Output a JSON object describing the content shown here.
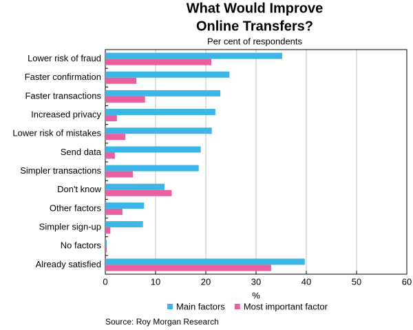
{
  "chart_data": {
    "type": "hbar",
    "title": [
      "What Would Improve",
      "Online Transfers?"
    ],
    "subtitle": "Per cent of respondents",
    "xlabel": "%",
    "source": "Source: Roy Morgan Research",
    "categories": [
      "Lower risk of fraud",
      "Faster confirmation",
      "Faster transactions",
      "Increased privacy",
      "Lower risk of mistakes",
      "Send data",
      "Simpler transactions",
      "Don't know",
      "Other factors",
      "Simpler sign-up",
      "No factors",
      "Already satisfied"
    ],
    "series": [
      {
        "name": "Main factors",
        "color": "#3bb6e6",
        "values": [
          35.2,
          24.7,
          22.9,
          21.9,
          21.2,
          19.0,
          18.6,
          11.8,
          7.7,
          7.5,
          0.3,
          39.7
        ]
      },
      {
        "name": "Most important factor",
        "color": "#e8609f",
        "values": [
          21.1,
          6.2,
          7.9,
          2.3,
          4.0,
          1.9,
          5.5,
          13.2,
          3.4,
          1.0,
          0.3,
          33.0
        ]
      }
    ],
    "xlim": [
      0,
      60
    ],
    "xticks": [
      0,
      10,
      20,
      30,
      40,
      50,
      60
    ],
    "grid": true,
    "legend": "bottom"
  }
}
